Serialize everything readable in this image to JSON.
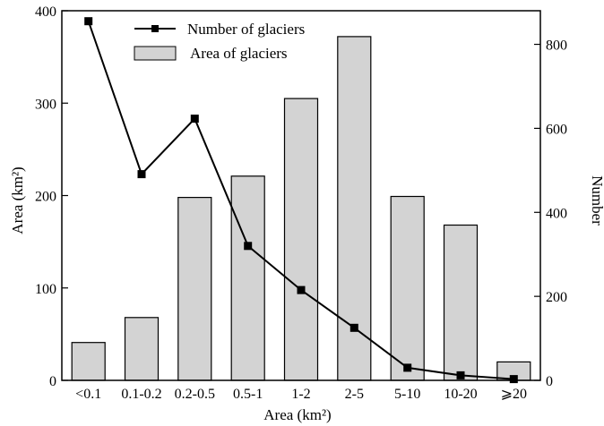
{
  "chart_data": {
    "type": "bar+line",
    "categories": [
      "<0.1",
      "0.1-0.2",
      "0.2-0.5",
      "0.5-1",
      "1-2",
      "2-5",
      "5-10",
      "10-20",
      "⩾20"
    ],
    "series": [
      {
        "name": "Area of glaciers",
        "type": "bar",
        "axis": "left",
        "values": [
          41,
          68,
          198,
          221,
          305,
          372,
          199,
          168,
          20
        ],
        "color": "#d3d3d3"
      },
      {
        "name": "Number of glaciers",
        "type": "line",
        "axis": "right",
        "marker": "square",
        "values": [
          855,
          491,
          623,
          320,
          215,
          125,
          30,
          12,
          3
        ],
        "color": "#000000"
      }
    ],
    "xlabel": "Area (km²)",
    "ylabel_left": "Area (km²)",
    "ylabel_right": "Number",
    "ylim_left": [
      0,
      400
    ],
    "yticks_left": [
      0,
      100,
      200,
      300,
      400
    ],
    "ylim_right": [
      0,
      880
    ],
    "yticks_right": [
      0,
      200,
      400,
      600,
      800
    ],
    "grid": false,
    "legend_position": "top-center"
  }
}
